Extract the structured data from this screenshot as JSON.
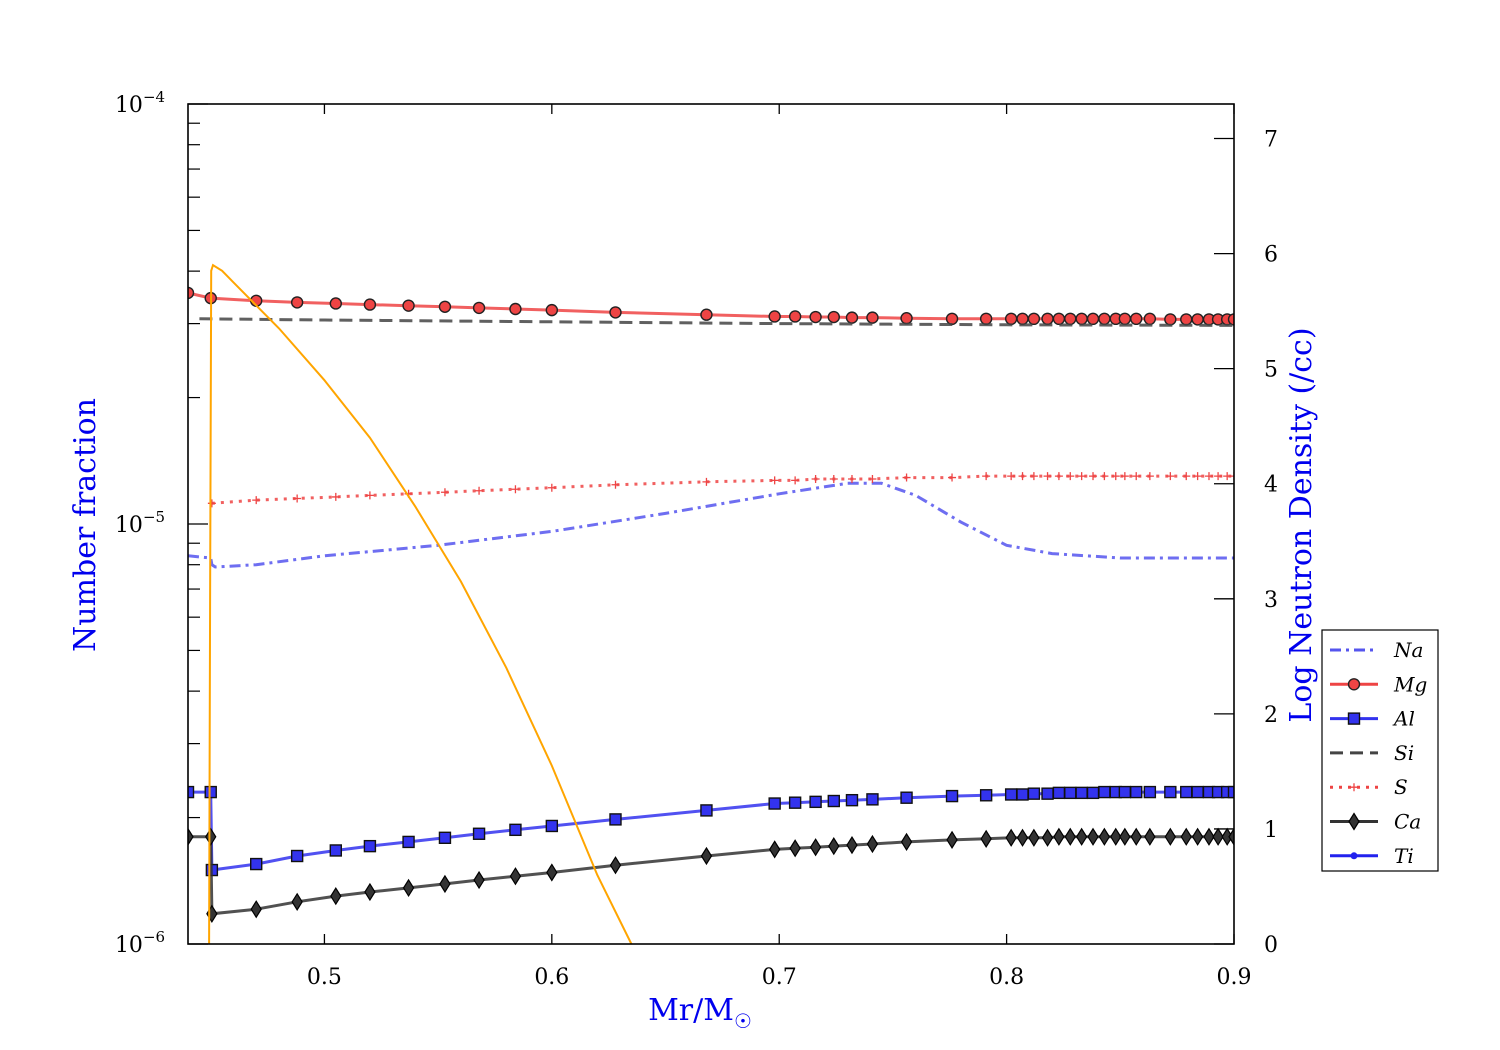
{
  "chart_data": {
    "type": "line",
    "title": "",
    "xlabel": "Mr/M",
    "xlabel_symbol": "☉",
    "ylabel_left": "Number fraction",
    "ylabel_right": "Log Neutron Density (/cc)",
    "xlim": [
      0.44,
      0.9
    ],
    "ylim_left": [
      1e-06,
      0.0001
    ],
    "yscale_left": "log",
    "ylim_right": [
      0,
      7.3
    ],
    "legend_position": "lower-right",
    "x_ticks": [
      {
        "value": 0.5,
        "label": "0.5"
      },
      {
        "value": 0.6,
        "label": "0.6"
      },
      {
        "value": 0.7,
        "label": "0.7"
      },
      {
        "value": 0.8,
        "label": "0.8"
      },
      {
        "value": 0.9,
        "label": "0.9"
      }
    ],
    "y_left_ticks": [
      {
        "value": 1e-06,
        "base": "10",
        "exp": "−6"
      },
      {
        "value": 1e-05,
        "base": "10",
        "exp": "−5"
      },
      {
        "value": 0.0001,
        "base": "10",
        "exp": "−4"
      }
    ],
    "y_right_ticks": [
      {
        "value": 0,
        "label": "0"
      },
      {
        "value": 1,
        "label": "1"
      },
      {
        "value": 2,
        "label": "2"
      },
      {
        "value": 3,
        "label": "3"
      },
      {
        "value": 4,
        "label": "4"
      },
      {
        "value": 5,
        "label": "5"
      },
      {
        "value": 6,
        "label": "6"
      },
      {
        "value": 7,
        "label": "7"
      }
    ],
    "series": [
      {
        "name": "Na",
        "color": "#5555ee",
        "dash": "dashdot",
        "marker": "none",
        "axis": "left",
        "x": [
          0.44,
          0.45,
          0.4505,
          0.452,
          0.47,
          0.5,
          0.55,
          0.6,
          0.65,
          0.7,
          0.73,
          0.745,
          0.76,
          0.78,
          0.8,
          0.82,
          0.85,
          0.9
        ],
        "y": [
          8.4e-06,
          8.3e-06,
          8e-06,
          7.9e-06,
          8e-06,
          8.4e-06,
          8.9e-06,
          9.6e-06,
          1.06e-05,
          1.18e-05,
          1.25e-05,
          1.25e-05,
          1.17e-05,
          1.01e-05,
          8.9e-06,
          8.5e-06,
          8.3e-06,
          8.3e-06
        ]
      },
      {
        "name": "Mg",
        "color": "#ee4444",
        "dash": "solid",
        "marker": "circle",
        "axis": "left",
        "x": [
          0.44,
          0.45,
          0.47,
          0.488,
          0.505,
          0.52,
          0.537,
          0.553,
          0.568,
          0.584,
          0.6,
          0.628,
          0.668,
          0.698,
          0.707,
          0.716,
          0.724,
          0.732,
          0.741,
          0.756,
          0.776,
          0.791,
          0.802,
          0.807,
          0.812,
          0.818,
          0.823,
          0.828,
          0.833,
          0.838,
          0.843,
          0.848,
          0.852,
          0.857,
          0.863,
          0.872,
          0.879,
          0.884,
          0.889,
          0.893,
          0.897,
          0.9
        ],
        "y": [
          3.55e-05,
          3.45e-05,
          3.4e-05,
          3.37e-05,
          3.35e-05,
          3.33e-05,
          3.31e-05,
          3.29e-05,
          3.27e-05,
          3.25e-05,
          3.23e-05,
          3.19e-05,
          3.15e-05,
          3.12e-05,
          3.12e-05,
          3.11e-05,
          3.11e-05,
          3.1e-05,
          3.1e-05,
          3.09e-05,
          3.08e-05,
          3.08e-05,
          3.08e-05,
          3.08e-05,
          3.08e-05,
          3.08e-05,
          3.08e-05,
          3.08e-05,
          3.08e-05,
          3.08e-05,
          3.08e-05,
          3.08e-05,
          3.08e-05,
          3.08e-05,
          3.08e-05,
          3.07e-05,
          3.07e-05,
          3.07e-05,
          3.07e-05,
          3.07e-05,
          3.07e-05,
          3.07e-05
        ]
      },
      {
        "name": "Al",
        "color": "#3333ee",
        "dash": "solid",
        "marker": "square",
        "axis": "left",
        "x": [
          0.44,
          0.45,
          0.4505,
          0.47,
          0.488,
          0.505,
          0.52,
          0.537,
          0.553,
          0.568,
          0.584,
          0.6,
          0.628,
          0.668,
          0.698,
          0.707,
          0.716,
          0.724,
          0.732,
          0.741,
          0.756,
          0.776,
          0.791,
          0.802,
          0.807,
          0.812,
          0.818,
          0.823,
          0.828,
          0.833,
          0.838,
          0.843,
          0.848,
          0.852,
          0.857,
          0.863,
          0.872,
          0.879,
          0.884,
          0.889,
          0.893,
          0.897,
          0.9
        ],
        "y": [
          2.3e-06,
          2.3e-06,
          1.5e-06,
          1.55e-06,
          1.62e-06,
          1.67e-06,
          1.71e-06,
          1.75e-06,
          1.79e-06,
          1.83e-06,
          1.87e-06,
          1.91e-06,
          1.98e-06,
          2.08e-06,
          2.16e-06,
          2.17e-06,
          2.18e-06,
          2.19e-06,
          2.2e-06,
          2.21e-06,
          2.23e-06,
          2.25e-06,
          2.26e-06,
          2.27e-06,
          2.27e-06,
          2.28e-06,
          2.28e-06,
          2.29e-06,
          2.29e-06,
          2.29e-06,
          2.29e-06,
          2.3e-06,
          2.3e-06,
          2.3e-06,
          2.3e-06,
          2.3e-06,
          2.3e-06,
          2.3e-06,
          2.3e-06,
          2.3e-06,
          2.3e-06,
          2.3e-06,
          2.3e-06
        ]
      },
      {
        "name": "Si",
        "color": "#444444",
        "dash": "dashed",
        "marker": "none",
        "axis": "left",
        "x": [
          0.445,
          0.5,
          0.6,
          0.7,
          0.8,
          0.9
        ],
        "y": [
          3.08e-05,
          3.06e-05,
          3.03e-05,
          3e-05,
          2.98e-05,
          2.97e-05
        ]
      },
      {
        "name": "S",
        "color": "#ee4444",
        "dash": "dotted",
        "marker": "plus",
        "axis": "left",
        "x": [
          0.4505,
          0.47,
          0.488,
          0.505,
          0.52,
          0.537,
          0.553,
          0.568,
          0.584,
          0.6,
          0.628,
          0.668,
          0.698,
          0.707,
          0.716,
          0.724,
          0.732,
          0.741,
          0.756,
          0.776,
          0.791,
          0.802,
          0.807,
          0.812,
          0.818,
          0.823,
          0.828,
          0.833,
          0.838,
          0.843,
          0.848,
          0.852,
          0.857,
          0.863,
          0.872,
          0.879,
          0.884,
          0.889,
          0.893,
          0.897,
          0.9
        ],
        "y": [
          1.12e-05,
          1.14e-05,
          1.15e-05,
          1.16e-05,
          1.17e-05,
          1.18e-05,
          1.19e-05,
          1.2e-05,
          1.21e-05,
          1.22e-05,
          1.24e-05,
          1.26e-05,
          1.27e-05,
          1.27e-05,
          1.28e-05,
          1.28e-05,
          1.28e-05,
          1.28e-05,
          1.29e-05,
          1.29e-05,
          1.3e-05,
          1.3e-05,
          1.3e-05,
          1.3e-05,
          1.3e-05,
          1.3e-05,
          1.3e-05,
          1.3e-05,
          1.3e-05,
          1.3e-05,
          1.3e-05,
          1.3e-05,
          1.3e-05,
          1.3e-05,
          1.3e-05,
          1.3e-05,
          1.3e-05,
          1.3e-05,
          1.3e-05,
          1.3e-05,
          1.3e-05
        ]
      },
      {
        "name": "Ca",
        "color": "#333333",
        "dash": "solid",
        "marker": "diamond",
        "axis": "left",
        "x": [
          0.44,
          0.45,
          0.4505,
          0.47,
          0.488,
          0.505,
          0.52,
          0.537,
          0.553,
          0.568,
          0.584,
          0.6,
          0.628,
          0.668,
          0.698,
          0.707,
          0.716,
          0.724,
          0.732,
          0.741,
          0.756,
          0.776,
          0.791,
          0.802,
          0.807,
          0.812,
          0.818,
          0.823,
          0.828,
          0.833,
          0.838,
          0.843,
          0.848,
          0.852,
          0.857,
          0.863,
          0.872,
          0.879,
          0.884,
          0.889,
          0.893,
          0.897,
          0.9
        ],
        "y": [
          1.8e-06,
          1.8e-06,
          1.18e-06,
          1.21e-06,
          1.26e-06,
          1.3e-06,
          1.33e-06,
          1.36e-06,
          1.39e-06,
          1.42e-06,
          1.45e-06,
          1.48e-06,
          1.54e-06,
          1.62e-06,
          1.68e-06,
          1.69e-06,
          1.7e-06,
          1.71e-06,
          1.72e-06,
          1.73e-06,
          1.75e-06,
          1.77e-06,
          1.78e-06,
          1.79e-06,
          1.79e-06,
          1.79e-06,
          1.79e-06,
          1.8e-06,
          1.8e-06,
          1.8e-06,
          1.8e-06,
          1.8e-06,
          1.8e-06,
          1.8e-06,
          1.8e-06,
          1.8e-06,
          1.8e-06,
          1.8e-06,
          1.8e-06,
          1.8e-06,
          1.8e-06,
          1.8e-06,
          1.8e-06
        ]
      },
      {
        "name": "Ti",
        "color": "#2222ee",
        "dash": "solid",
        "marker": "dot",
        "axis": "left",
        "x": [],
        "y": []
      },
      {
        "name": "Neutron density",
        "color": "#ffa500",
        "dash": "solid",
        "marker": "none",
        "axis": "right",
        "in_legend": false,
        "x": [
          0.4493,
          0.4497,
          0.4502,
          0.451,
          0.455,
          0.46,
          0.47,
          0.48,
          0.5,
          0.52,
          0.54,
          0.56,
          0.58,
          0.6,
          0.62,
          0.635
        ],
        "y": [
          0.0,
          3.0,
          5.85,
          5.9,
          5.85,
          5.75,
          5.55,
          5.35,
          4.9,
          4.4,
          3.8,
          3.15,
          2.4,
          1.55,
          0.6,
          0.0
        ]
      }
    ]
  }
}
